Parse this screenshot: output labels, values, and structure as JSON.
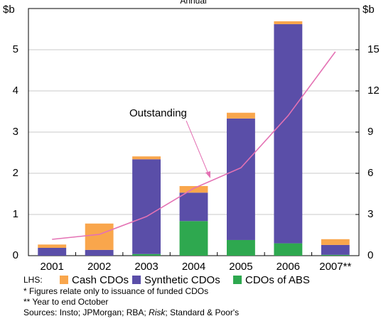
{
  "chart_data": {
    "type": "bar",
    "title": "Annual",
    "y_unit": "$b",
    "y2_unit": "$b",
    "categories": [
      "2001",
      "2002",
      "2003",
      "2004",
      "2005",
      "2006",
      "2007**"
    ],
    "series": [
      {
        "name": "CDOs of ABS",
        "color": "#2ea84f",
        "values": [
          0,
          0,
          0.04,
          0.84,
          0.38,
          0.3,
          0.02
        ]
      },
      {
        "name": "Synthetic CDOs",
        "color": "#5a4ea8",
        "values": [
          0.19,
          0.14,
          2.3,
          0.69,
          2.95,
          5.32,
          0.24
        ]
      },
      {
        "name": "Cash CDOs",
        "color": "#f9a64c",
        "values": [
          0.08,
          0.64,
          0.07,
          0.16,
          0.14,
          0.07,
          0.14
        ]
      },
      {
        "name": "Outstanding",
        "type": "line",
        "axis": "y2",
        "color": "#e472b4",
        "values": [
          1.19,
          1.55,
          2.85,
          4.9,
          6.4,
          10.2,
          14.85
        ]
      }
    ],
    "stacked": true,
    "ylim": [
      0,
      6
    ],
    "yticks": [
      0,
      1,
      2,
      3,
      4,
      5
    ],
    "y2lim": [
      0,
      18
    ],
    "y2ticks": [
      0,
      3,
      6,
      9,
      12,
      15
    ],
    "grid": true,
    "legend_prefix": "LHS:",
    "notes": [
      "*  Figures relate only to issuance of funded CDOs",
      "** Year to end October"
    ],
    "sources": [
      "Sources: Insto; JPMorgan; RBA; ",
      "Risk",
      "; Standard & Poor's"
    ]
  }
}
